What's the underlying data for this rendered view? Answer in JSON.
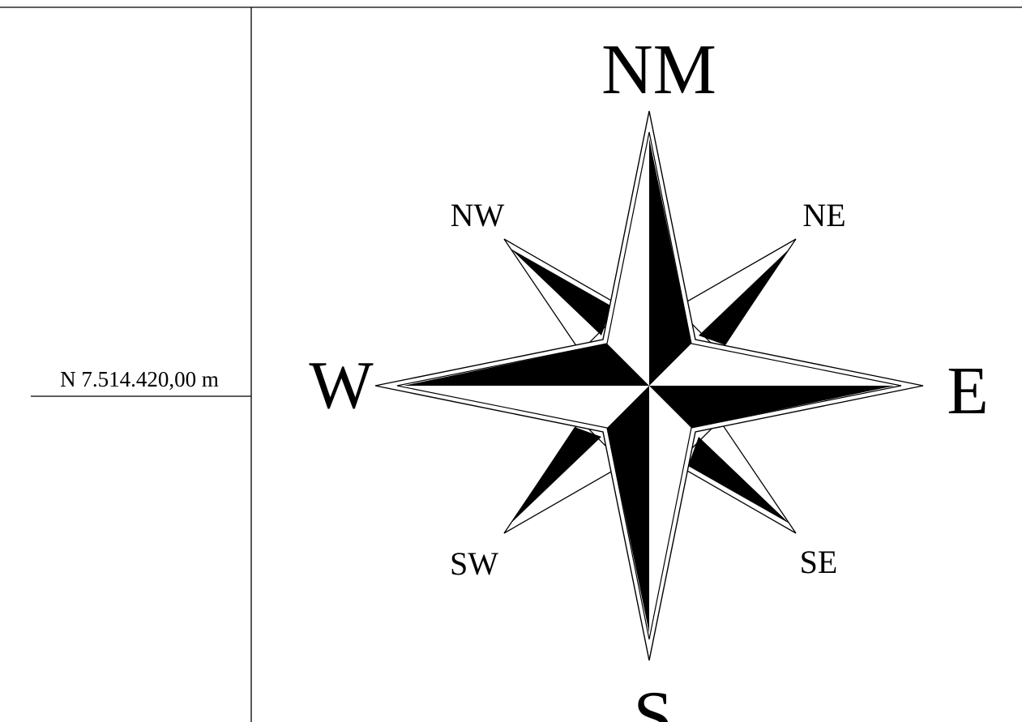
{
  "coordinate_label": "N 7.514.420,00 m",
  "compass": {
    "north": "NM",
    "east": "E",
    "south": "S",
    "west": "W",
    "northeast": "NE",
    "northwest": "NW",
    "southeast": "SE",
    "southwest": "SW"
  },
  "colors": {
    "ink": "#000000",
    "paper": "#ffffff"
  }
}
